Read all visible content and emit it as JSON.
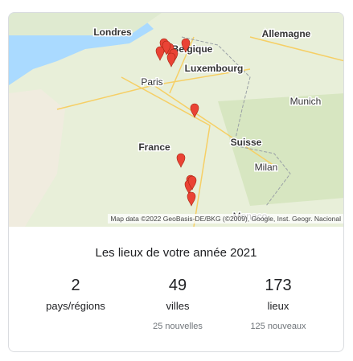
{
  "map": {
    "labels": [
      "Londres",
      "Allemagne",
      "Belgique",
      "Luxembourg",
      "Paris",
      "Munich",
      "France",
      "Suisse",
      "Milan",
      "Monaco"
    ],
    "attribution": "Map data ©2022 GeoBasis-DE/BKG (©2009), Google, Inst. Geogr. Nacional"
  },
  "title": "Les lieux de votre année 2021",
  "stats": [
    {
      "value": 2,
      "label": "pays/régions"
    },
    {
      "value": 49,
      "label": "villes",
      "note": "25 nouvelles"
    },
    {
      "value": 173,
      "label": "lieux",
      "note": "125 nouveaux"
    }
  ]
}
